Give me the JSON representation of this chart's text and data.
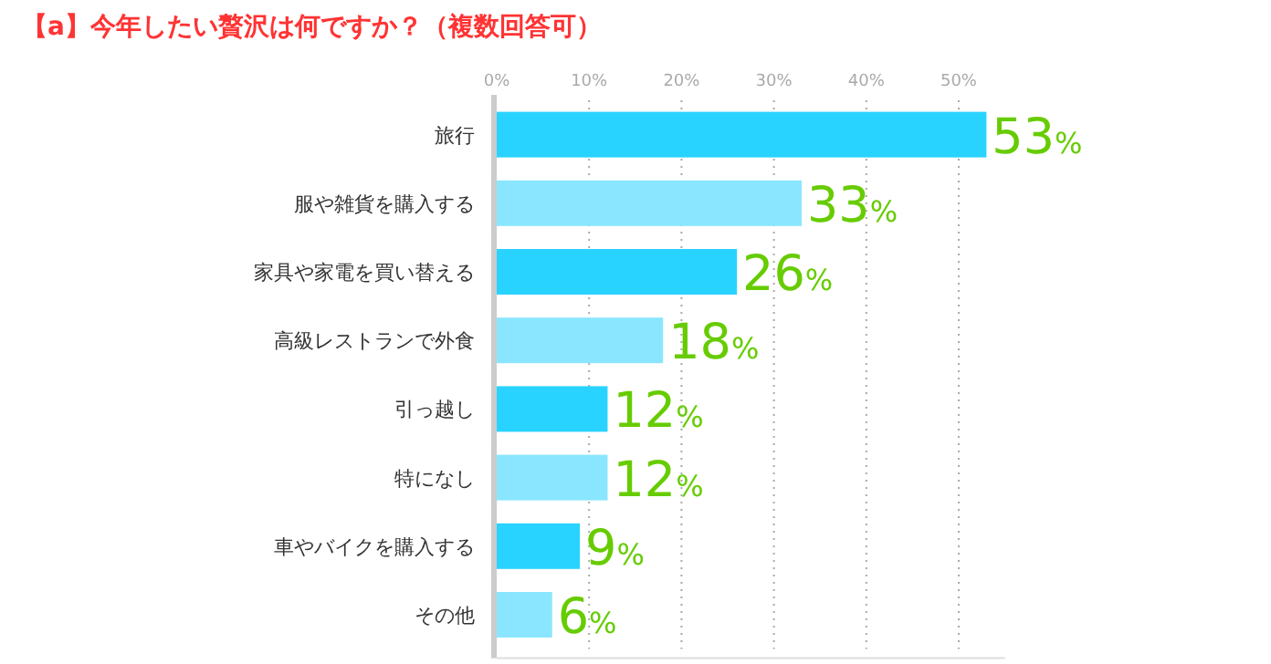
{
  "chart_data": {
    "type": "bar",
    "orientation": "horizontal",
    "title": "【a】今年したい贅沢は何ですか？（複数回答可）",
    "categories": [
      "旅行",
      "服や雑貨を購入する",
      "家具や家電を買い替える",
      "高級レストランで外食",
      "引っ越し",
      "特になし",
      "車やバイクを購入する",
      "その他"
    ],
    "values": [
      53,
      33,
      26,
      18,
      12,
      12,
      9,
      6
    ],
    "colors": [
      "#29d3ff",
      "#8ae6ff",
      "#29d3ff",
      "#8ae6ff",
      "#29d3ff",
      "#8ae6ff",
      "#29d3ff",
      "#8ae6ff"
    ],
    "value_labels": [
      "53%",
      "33%",
      "26%",
      "18%",
      "12%",
      "12%",
      "9%",
      "6%"
    ],
    "xticks": [
      {
        "value": 0,
        "label": "0%"
      },
      {
        "value": 10,
        "label": "10%"
      },
      {
        "value": 20,
        "label": "20%"
      },
      {
        "value": 30,
        "label": "30%"
      },
      {
        "value": 40,
        "label": "40%"
      },
      {
        "value": 50,
        "label": "50%"
      }
    ],
    "xlim": [
      0,
      55
    ],
    "grid": "x"
  }
}
